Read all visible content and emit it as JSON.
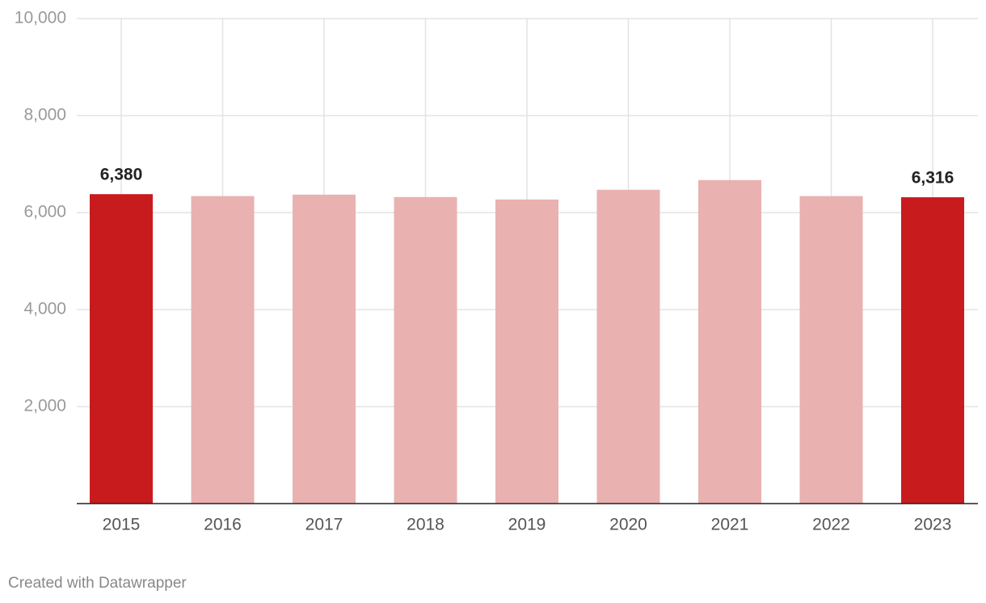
{
  "chart_data": {
    "type": "bar",
    "categories": [
      "2015",
      "2016",
      "2017",
      "2018",
      "2019",
      "2020",
      "2021",
      "2022",
      "2023"
    ],
    "values": [
      6380,
      6340,
      6370,
      6320,
      6270,
      6470,
      6670,
      6340,
      6316
    ],
    "value_labels": [
      "6,380",
      null,
      null,
      null,
      null,
      null,
      null,
      null,
      "6,316"
    ],
    "colors": [
      "#c81b1e",
      "#eab1b1",
      "#eab1b1",
      "#eab1b1",
      "#eab1b1",
      "#eab1b1",
      "#eab1b1",
      "#eab1b1",
      "#c81b1e"
    ],
    "ylim": [
      0,
      10000
    ],
    "yticks": [
      {
        "value": 2000,
        "label": "2,000"
      },
      {
        "value": 4000,
        "label": "4,000"
      },
      {
        "value": 6000,
        "label": "6,000"
      },
      {
        "value": 8000,
        "label": "8,000"
      },
      {
        "value": 10000,
        "label": "10,000"
      }
    ],
    "grid": true,
    "credit": "Created with Datawrapper"
  }
}
